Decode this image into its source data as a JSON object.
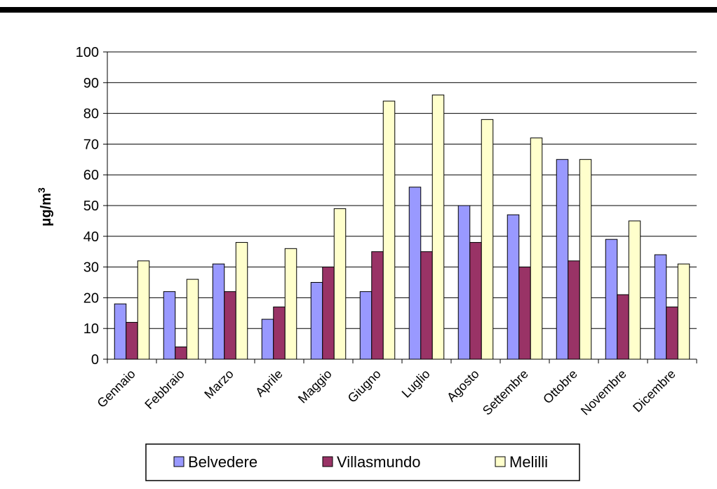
{
  "chart_data": {
    "type": "bar",
    "categories": [
      "Gennaio",
      "Febbraio",
      "Marzo",
      "Aprile",
      "Maggio",
      "Giugno",
      "Luglio",
      "Agosto",
      "Settembre",
      "Ottobre",
      "Novembre",
      "Dicembre"
    ],
    "series": [
      {
        "name": "Belvedere",
        "color": "#9999FF",
        "values": [
          18,
          22,
          31,
          13,
          25,
          22,
          56,
          50,
          47,
          65,
          39,
          34
        ]
      },
      {
        "name": "Villasmundo",
        "color": "#993366",
        "values": [
          12,
          4,
          22,
          17,
          30,
          35,
          35,
          38,
          30,
          32,
          21,
          17
        ]
      },
      {
        "name": "Melilli",
        "color": "#FFFFCC",
        "values": [
          32,
          26,
          38,
          36,
          49,
          84,
          86,
          78,
          72,
          65,
          45,
          31
        ]
      }
    ],
    "ylabel_base": "μg/m",
    "ylabel_sup": "3",
    "ylim": [
      0,
      100
    ],
    "yticks": [
      "0",
      "10",
      "20",
      "30",
      "40",
      "50",
      "60",
      "70",
      "80",
      "90",
      "100"
    ],
    "grid": true,
    "legend_position": "bottom"
  }
}
